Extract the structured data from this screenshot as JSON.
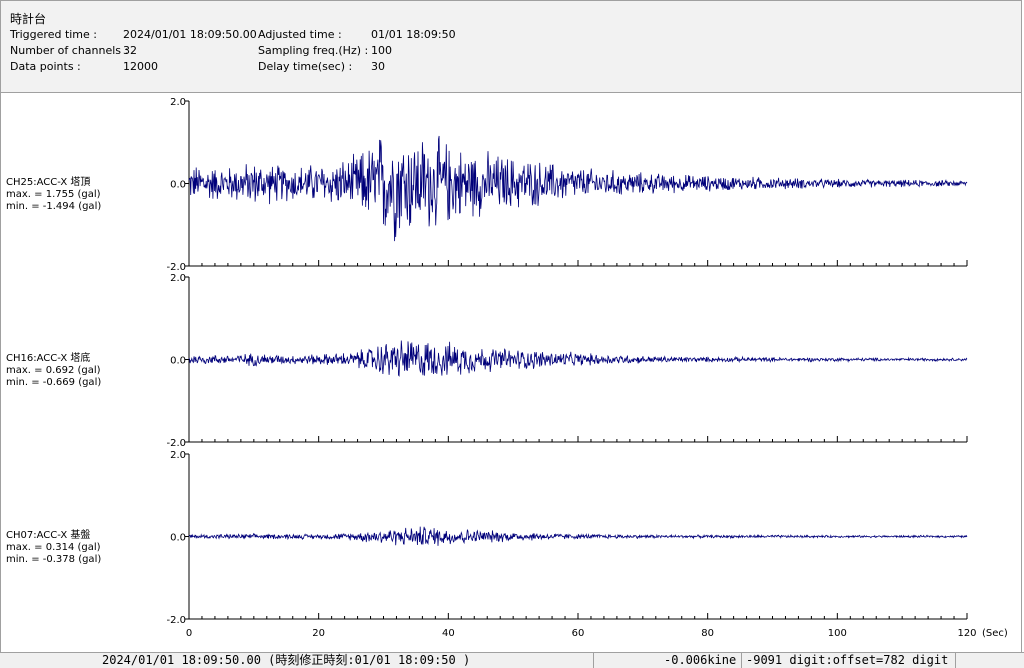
{
  "header": {
    "title": "時計台",
    "triggered_label": "Triggered time :",
    "triggered_value": "2024/01/01 18:09:50.00",
    "channels_label": "Number of channels :",
    "channels_value": "32",
    "points_label": "Data points :",
    "points_value": "12000",
    "adjusted_label": "Adjusted time :",
    "adjusted_value": "01/01 18:09:50",
    "sampling_label": "Sampling freq.(Hz) :",
    "sampling_value": "100",
    "delay_label": "Delay time(sec) :",
    "delay_value": "30"
  },
  "colors": {
    "trace": "#00007a",
    "axis": "#000000"
  },
  "chart_data": {
    "type": "line",
    "x_unit_label": "(Sec)",
    "xlim": [
      0,
      120
    ],
    "x_ticks": [
      0,
      20,
      40,
      60,
      80,
      100,
      120
    ],
    "x_tick_labels": [
      "0",
      "20",
      "40",
      "60",
      "80",
      "100",
      "120"
    ],
    "ylim": [
      -2.0,
      2.0
    ],
    "y_tick_labels": [
      "2.0",
      "0.0",
      "-2.0"
    ],
    "channels": [
      {
        "name": "CH25:ACC-X 塔頂",
        "max_text": "max. = 1.755 (gal)",
        "min_text": "min. = -1.494 (gal)",
        "max": 1.755,
        "min": -1.494,
        "envelope_t": [
          0,
          2,
          5,
          10,
          15,
          20,
          25,
          28,
          30,
          32,
          35,
          38,
          42,
          45,
          50,
          55,
          60,
          70,
          80,
          90,
          100,
          110,
          120
        ],
        "envelope_a": [
          0.45,
          0.55,
          0.45,
          0.6,
          0.5,
          0.55,
          0.7,
          1.1,
          1.5,
          1.6,
          1.35,
          1.3,
          1.0,
          0.9,
          0.75,
          0.6,
          0.45,
          0.3,
          0.22,
          0.17,
          0.12,
          0.1,
          0.08
        ]
      },
      {
        "name": "CH16:ACC-X 塔底",
        "max_text": "max. = 0.692 (gal)",
        "min_text": "min. = -0.669 (gal)",
        "max": 0.692,
        "min": -0.669,
        "envelope_t": [
          0,
          5,
          10,
          15,
          20,
          25,
          28,
          30,
          32,
          35,
          38,
          42,
          45,
          50,
          55,
          60,
          70,
          80,
          90,
          100,
          110,
          120
        ],
        "envelope_a": [
          0.15,
          0.12,
          0.18,
          0.12,
          0.15,
          0.2,
          0.35,
          0.5,
          0.55,
          0.6,
          0.5,
          0.45,
          0.35,
          0.3,
          0.25,
          0.18,
          0.1,
          0.07,
          0.06,
          0.05,
          0.04,
          0.04
        ]
      },
      {
        "name": "CH07:ACC-X 基盤",
        "max_text": "max. = 0.314 (gal)",
        "min_text": "min. = -0.378 (gal)",
        "max": 0.314,
        "min": -0.378,
        "envelope_t": [
          0,
          10,
          20,
          25,
          28,
          30,
          33,
          36,
          40,
          45,
          50,
          55,
          60,
          70,
          80,
          90,
          100,
          110,
          120
        ],
        "envelope_a": [
          0.06,
          0.07,
          0.07,
          0.1,
          0.18,
          0.22,
          0.25,
          0.3,
          0.25,
          0.18,
          0.14,
          0.1,
          0.07,
          0.05,
          0.04,
          0.04,
          0.03,
          0.03,
          0.03
        ]
      }
    ]
  },
  "status": {
    "time": "2024/01/01 18:09:50.00  (時刻修正時刻:01/01 18:09:50  )",
    "velocity": "-0.006kine",
    "digit": "-9091 digit:offset=782 digit"
  }
}
